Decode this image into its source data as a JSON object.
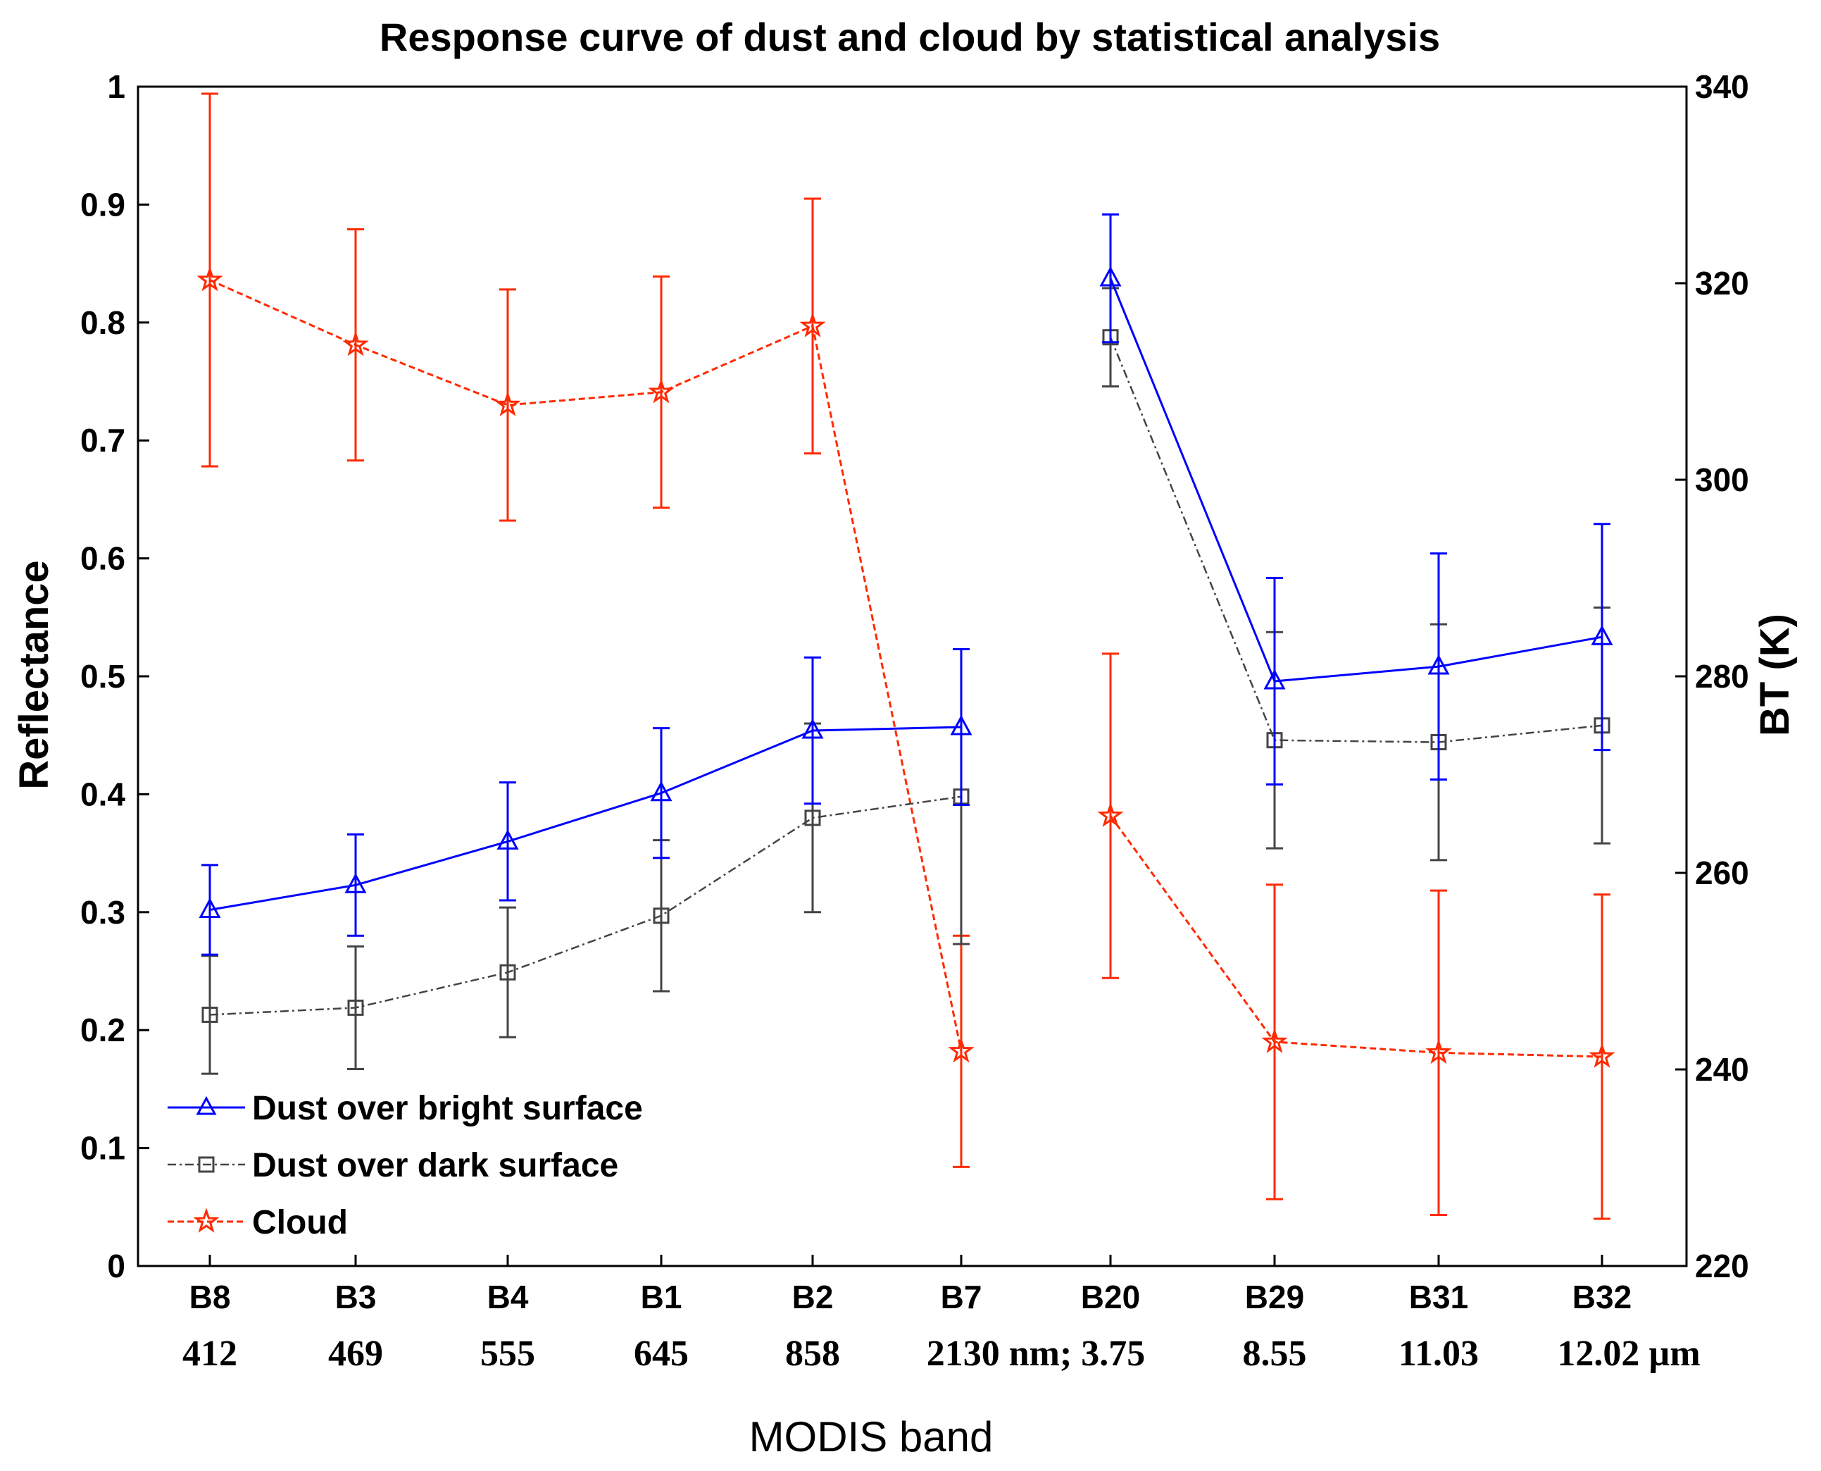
{
  "chart_data": {
    "type": "line",
    "title": "Response curve of dust and cloud by statistical analysis",
    "xlabel": "MODIS band",
    "ylabel": "Reflectance",
    "y2label": "BT (K)",
    "ylim": [
      0,
      1
    ],
    "y2lim": [
      220,
      340
    ],
    "yticks": [
      "0",
      "0.1",
      "0.2",
      "0.3",
      "0.4",
      "0.5",
      "0.6",
      "0.7",
      "0.8",
      "0.9",
      "1"
    ],
    "y2ticks": [
      "220",
      "240",
      "260",
      "280",
      "300",
      "320",
      "340"
    ],
    "categories": [
      "B8",
      "B3",
      "B4",
      "B1",
      "B2",
      "B7",
      "B20",
      "B29",
      "B31",
      "B32"
    ],
    "wavelength_labels": [
      "412",
      "469",
      "555",
      "645",
      "858",
      "2130 nm; 3.75",
      "8.55",
      "11.03",
      "12.02 µm"
    ],
    "reflectance_bands": 6,
    "series": [
      {
        "name": "Dust over bright surface",
        "color": "#0000ff",
        "marker": "triangle",
        "line": "solid",
        "reflectance": [
          0.302,
          0.323,
          0.36,
          0.401,
          0.454,
          0.457
        ],
        "reflectance_err": [
          0.038,
          0.043,
          0.05,
          0.055,
          0.062,
          0.066
        ],
        "bt": [
          320.5,
          279.5,
          281.0,
          284.0
        ],
        "bt_err": [
          6.5,
          10.5,
          11.5,
          11.5
        ]
      },
      {
        "name": "Dust over dark surface",
        "color": "#444444",
        "marker": "square",
        "line": "dashdot",
        "reflectance": [
          0.213,
          0.219,
          0.249,
          0.297,
          0.38,
          0.398
        ],
        "reflectance_err": [
          0.05,
          0.052,
          0.055,
          0.064,
          0.08,
          0.125
        ],
        "bt": [
          314.5,
          273.5,
          273.3,
          275.0
        ],
        "bt_err": [
          5.0,
          11.0,
          12.0,
          12.0
        ]
      },
      {
        "name": "Cloud",
        "color": "#ff2a00",
        "marker": "star",
        "line": "dashed",
        "reflectance": [
          0.836,
          0.781,
          0.73,
          0.741,
          0.797,
          0.182
        ],
        "reflectance_err": [
          0.158,
          0.098,
          0.098,
          0.098,
          0.108,
          0.098
        ],
        "bt": [
          265.8,
          242.8,
          241.7,
          241.3
        ],
        "bt_err": [
          16.5,
          16.0,
          16.5,
          16.5
        ]
      }
    ]
  }
}
